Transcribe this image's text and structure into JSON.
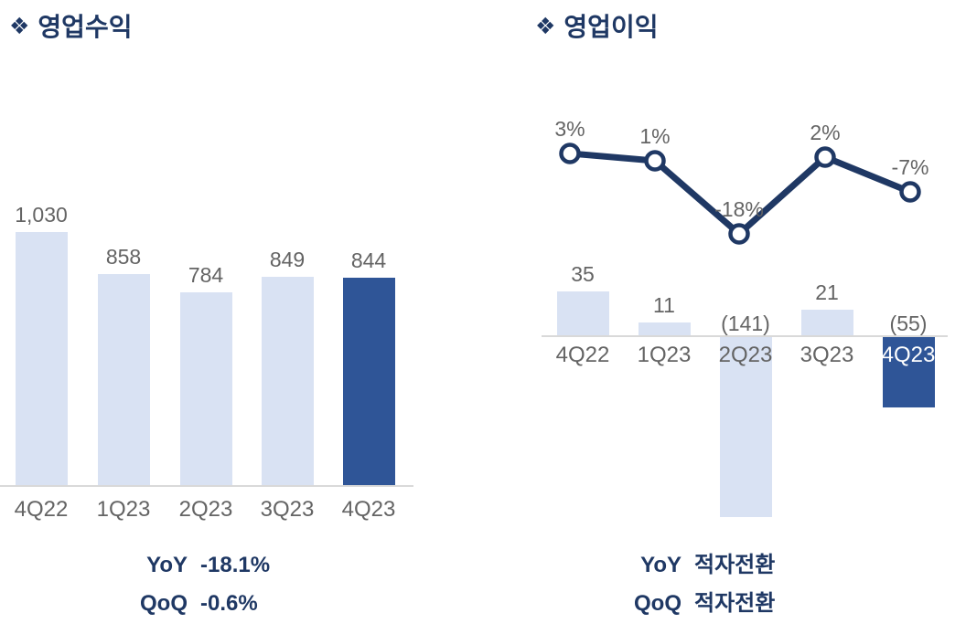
{
  "colors": {
    "navy": "#1F3864",
    "bar_highlight": "#2F5597",
    "bar_light": "#D9E2F3",
    "label_gray": "#646464",
    "axis_gray": "#D9D9D9",
    "marker_fill": "#FFFFFF"
  },
  "left_panel": {
    "bullet": "❖",
    "title": "영업수익",
    "footer_rows": [
      {
        "label": "YoY",
        "value": "-18.1%"
      },
      {
        "label": "QoQ",
        "value": "-0.6%"
      }
    ]
  },
  "right_panel": {
    "bullet": "❖",
    "title": "영업이익",
    "footer_rows": [
      {
        "label": "YoY",
        "value": "적자전환"
      },
      {
        "label": "QoQ",
        "value": "적자전환"
      }
    ]
  },
  "chart_data": [
    {
      "type": "bar",
      "title": "영업수익",
      "categories": [
        "4Q22",
        "1Q23",
        "2Q23",
        "3Q23",
        "4Q23"
      ],
      "values": [
        1030,
        858,
        784,
        849,
        844
      ],
      "value_labels": [
        "1,030",
        "858",
        "784",
        "849",
        "844"
      ],
      "highlight_index": 4,
      "xlabel": "",
      "ylabel": "",
      "grid": false,
      "legend": "none",
      "y_axis_visible": false,
      "footer": {
        "YoY": "-18.1%",
        "QoQ": "-0.6%"
      }
    },
    {
      "type": "bar+line",
      "title": "영업이익",
      "categories": [
        "4Q22",
        "1Q23",
        "2Q23",
        "3Q23",
        "4Q23"
      ],
      "series": [
        {
          "name": "operating-profit-bar",
          "type": "bar",
          "values": [
            35,
            11,
            -141,
            21,
            -55
          ],
          "value_labels": [
            "35",
            "11",
            "(141)",
            "21",
            "(55)"
          ],
          "highlight_index": 4
        },
        {
          "name": "operating-margin-line",
          "type": "line",
          "values": [
            3,
            1,
            -18,
            2,
            -7
          ],
          "value_labels": [
            "3%",
            "1%",
            "-18%",
            "2%",
            "-7%"
          ]
        }
      ],
      "xlabel": "",
      "ylabel": "",
      "grid": false,
      "legend": "none",
      "y_axis_visible": false,
      "footer": {
        "YoY": "적자전환",
        "QoQ": "적자전환"
      }
    }
  ]
}
